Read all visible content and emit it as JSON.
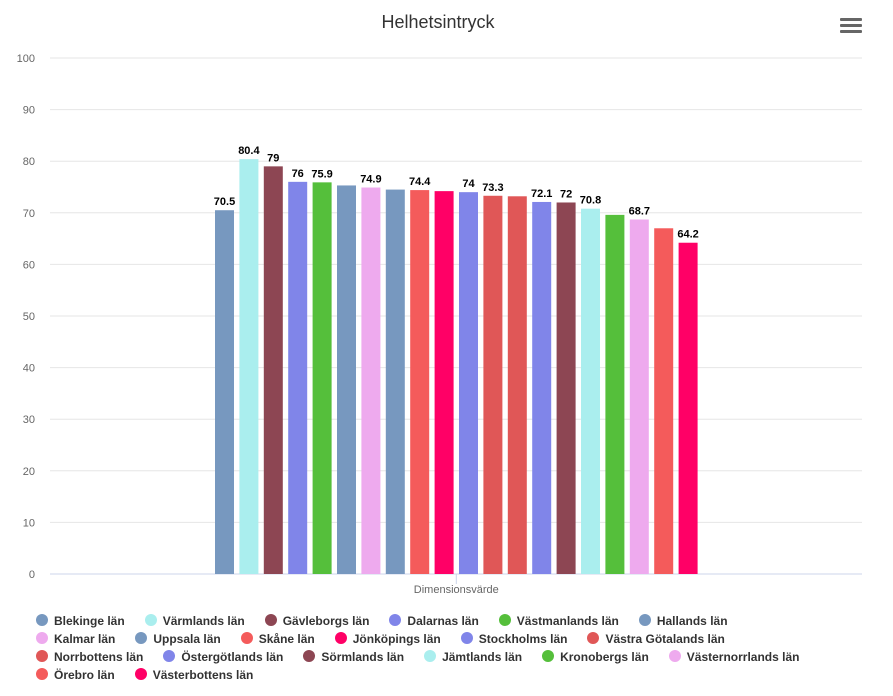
{
  "chart_data": {
    "type": "bar",
    "title": "Helhetsintryck",
    "xlabel": "",
    "ylabel": "",
    "ylim": [
      0,
      100
    ],
    "yticks": [
      0,
      10,
      20,
      30,
      40,
      50,
      60,
      70,
      80,
      90,
      100
    ],
    "categories": [
      "Dimensionsvärde"
    ],
    "grid": true,
    "legend_position": "bottom",
    "series": [
      {
        "name": "Blekinge län",
        "value": 70.5,
        "label": "70.5",
        "color": "#7798BF"
      },
      {
        "name": "Värmlands län",
        "value": 80.4,
        "label": "80.4",
        "color": "#AAEEEE"
      },
      {
        "name": "Gävleborgs län",
        "value": 79,
        "label": "79",
        "color": "#8D4653"
      },
      {
        "name": "Dalarnas län",
        "value": 76,
        "label": "76",
        "color": "#8085E9"
      },
      {
        "name": "Västmanlands län",
        "value": 75.9,
        "label": "75.9",
        "color": "#55BF3B"
      },
      {
        "name": "Hallands län",
        "value": 75.3,
        "label": "",
        "color": "#7798BF"
      },
      {
        "name": "Kalmar län",
        "value": 74.9,
        "label": "74.9",
        "color": "#EEAAEE"
      },
      {
        "name": "Uppsala län",
        "value": 74.5,
        "label": "",
        "color": "#7798BF"
      },
      {
        "name": "Skåne län",
        "value": 74.4,
        "label": "74.4",
        "color": "#F45B5B"
      },
      {
        "name": "Jönköpings län",
        "value": 74.2,
        "label": "",
        "color": "#FF0066"
      },
      {
        "name": "Stockholms län",
        "value": 74,
        "label": "74",
        "color": "#8085E9"
      },
      {
        "name": "Västra Götalands län",
        "value": 73.3,
        "label": "73.3",
        "color": "#E05757"
      },
      {
        "name": "Norrbottens län",
        "value": 73.2,
        "label": "",
        "color": "#E05757"
      },
      {
        "name": "Östergötlands län",
        "value": 72.1,
        "label": "72.1",
        "color": "#8085E9"
      },
      {
        "name": "Sörmlands län",
        "value": 72,
        "label": "72",
        "color": "#8D4653"
      },
      {
        "name": "Jämtlands län",
        "value": 70.8,
        "label": "70.8",
        "color": "#AAEEEE"
      },
      {
        "name": "Kronobergs län",
        "value": 69.6,
        "label": "",
        "color": "#55BF3B"
      },
      {
        "name": "Västernorrlands län",
        "value": 68.7,
        "label": "68.7",
        "color": "#EEAAEE"
      },
      {
        "name": "Örebro län",
        "value": 67,
        "label": "",
        "color": "#F45B5B"
      },
      {
        "name": "Västerbottens län",
        "value": 64.2,
        "label": "64.2",
        "color": "#FF0066"
      }
    ]
  },
  "legend_rows": [
    [
      0,
      1,
      2,
      3,
      4,
      5
    ],
    [
      6,
      7,
      8,
      9,
      10,
      11
    ],
    [
      12,
      13,
      14,
      15,
      16,
      17
    ],
    [
      18,
      19
    ]
  ],
  "menu": {
    "icon": "hamburger-menu-icon"
  }
}
